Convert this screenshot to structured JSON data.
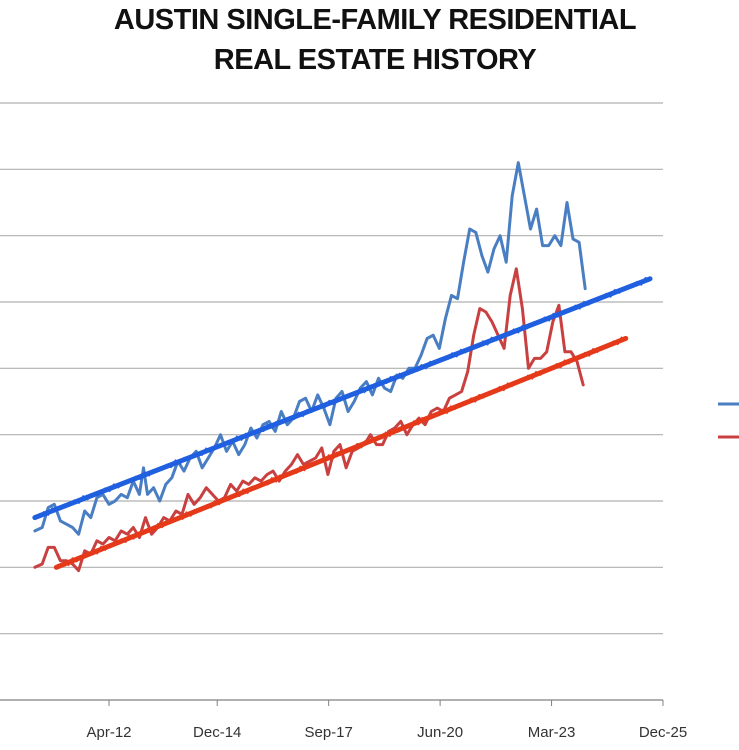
{
  "chart_data": {
    "type": "line",
    "title_line1": "AUSTIN SINGLE-FAMILY RESIDENTIAL",
    "title_line2": "REAL ESTATE HISTORY",
    "xlabel": "",
    "ylabel": "",
    "x_tick_labels": [
      "Apr-12",
      "Dec-14",
      "Sep-17",
      "Jun-20",
      "Mar-23",
      "Dec-25"
    ],
    "x_ticks": [
      2012.25,
      2014.92,
      2017.67,
      2020.42,
      2023.17,
      2025.92
    ],
    "xlim": [
      2010.3,
      2025.92
    ],
    "ylim": [
      0,
      9
    ],
    "grid": true,
    "colors": {
      "blue": "#4a7ec3",
      "blue_trend": "#1f5fe0",
      "red": "#c94040",
      "red_trend": "#e43a1a",
      "grid": "#b0b0b0",
      "axis": "#808080"
    },
    "series": [
      {
        "color": "blue",
        "x": [
          2010.42,
          2010.6,
          2010.75,
          2010.9,
          2011.05,
          2011.2,
          2011.35,
          2011.5,
          2011.65,
          2011.8,
          2011.95,
          2012.1,
          2012.25,
          2012.4,
          2012.55,
          2012.7,
          2012.85,
          2013.0,
          2013.1,
          2013.2,
          2013.35,
          2013.5,
          2013.65,
          2013.8,
          2013.95,
          2014.1,
          2014.25,
          2014.4,
          2014.55,
          2014.7,
          2014.85,
          2015.0,
          2015.15,
          2015.3,
          2015.45,
          2015.6,
          2015.75,
          2015.9,
          2016.05,
          2016.2,
          2016.35,
          2016.5,
          2016.65,
          2016.8,
          2016.95,
          2017.1,
          2017.25,
          2017.4,
          2017.55,
          2017.7,
          2017.85,
          2018.0,
          2018.15,
          2018.3,
          2018.45,
          2018.6,
          2018.75,
          2018.9,
          2019.05,
          2019.2,
          2019.35,
          2019.5,
          2019.65,
          2019.8,
          2019.95,
          2020.1,
          2020.25,
          2020.4,
          2020.55,
          2020.7,
          2020.85,
          2021.0,
          2021.15,
          2021.3,
          2021.45,
          2021.6,
          2021.75,
          2021.9,
          2022.05,
          2022.2,
          2022.35,
          2022.5,
          2022.65,
          2022.8,
          2022.95,
          2023.1,
          2023.25,
          2023.4,
          2023.55,
          2023.7,
          2023.85,
          2024.0
        ],
        "values": [
          2.55,
          2.6,
          2.9,
          2.95,
          2.7,
          2.65,
          2.6,
          2.5,
          2.85,
          2.75,
          3.05,
          3.1,
          2.95,
          3.0,
          3.1,
          3.05,
          3.3,
          3.1,
          3.5,
          3.1,
          3.2,
          3.0,
          3.25,
          3.35,
          3.6,
          3.45,
          3.65,
          3.75,
          3.5,
          3.65,
          3.8,
          4.0,
          3.75,
          3.9,
          3.7,
          3.85,
          4.1,
          3.95,
          4.15,
          4.2,
          4.05,
          4.35,
          4.15,
          4.25,
          4.5,
          4.55,
          4.35,
          4.6,
          4.4,
          4.15,
          4.55,
          4.65,
          4.35,
          4.5,
          4.7,
          4.8,
          4.6,
          4.85,
          4.7,
          4.65,
          4.9,
          4.85,
          5.0,
          5.0,
          5.2,
          5.45,
          5.5,
          5.3,
          5.75,
          6.1,
          6.05,
          6.6,
          7.1,
          7.05,
          6.7,
          6.45,
          6.8,
          7.0,
          6.6,
          7.6,
          8.1,
          7.6,
          7.1,
          7.4,
          6.85,
          6.85,
          7.0,
          6.85,
          7.5,
          6.95,
          6.9,
          6.2
        ]
      },
      {
        "color": "red",
        "x": [
          2010.42,
          2010.6,
          2010.75,
          2010.9,
          2011.05,
          2011.2,
          2011.35,
          2011.5,
          2011.65,
          2011.8,
          2011.95,
          2012.1,
          2012.25,
          2012.4,
          2012.55,
          2012.7,
          2012.85,
          2013.0,
          2013.15,
          2013.3,
          2013.45,
          2013.6,
          2013.75,
          2013.9,
          2014.05,
          2014.2,
          2014.35,
          2014.5,
          2014.65,
          2014.8,
          2014.95,
          2015.1,
          2015.25,
          2015.4,
          2015.55,
          2015.7,
          2015.85,
          2016.0,
          2016.15,
          2016.3,
          2016.45,
          2016.6,
          2016.75,
          2016.9,
          2017.05,
          2017.2,
          2017.35,
          2017.5,
          2017.65,
          2017.8,
          2017.95,
          2018.1,
          2018.25,
          2018.4,
          2018.55,
          2018.7,
          2018.85,
          2019.0,
          2019.15,
          2019.3,
          2019.45,
          2019.6,
          2019.75,
          2019.9,
          2020.05,
          2020.2,
          2020.35,
          2020.5,
          2020.65,
          2020.8,
          2020.95,
          2021.1,
          2021.25,
          2021.4,
          2021.55,
          2021.7,
          2021.85,
          2022.0,
          2022.15,
          2022.3,
          2022.45,
          2022.6,
          2022.75,
          2022.9,
          2023.05,
          2023.2,
          2023.35,
          2023.5,
          2023.65,
          2023.8,
          2023.95
        ],
        "values": [
          2.0,
          2.05,
          2.3,
          2.3,
          2.1,
          2.1,
          2.05,
          1.95,
          2.25,
          2.2,
          2.4,
          2.35,
          2.45,
          2.4,
          2.55,
          2.5,
          2.6,
          2.45,
          2.75,
          2.5,
          2.6,
          2.75,
          2.7,
          2.85,
          2.8,
          3.1,
          2.95,
          3.05,
          3.2,
          3.1,
          3.0,
          3.05,
          3.25,
          3.15,
          3.3,
          3.25,
          3.35,
          3.3,
          3.4,
          3.45,
          3.3,
          3.45,
          3.55,
          3.7,
          3.55,
          3.6,
          3.65,
          3.8,
          3.4,
          3.75,
          3.85,
          3.5,
          3.75,
          3.8,
          3.85,
          4.0,
          3.85,
          3.85,
          4.05,
          4.1,
          4.2,
          4.0,
          4.15,
          4.25,
          4.15,
          4.35,
          4.4,
          4.35,
          4.55,
          4.6,
          4.65,
          4.95,
          5.5,
          5.9,
          5.85,
          5.7,
          5.5,
          5.3,
          6.1,
          6.5,
          5.9,
          5.0,
          5.15,
          5.15,
          5.25,
          5.7,
          5.95,
          5.25,
          5.25,
          5.1,
          4.75
        ]
      },
      {
        "color": "blue_trend",
        "kind": "trend",
        "x": [
          2010.42,
          2025.6
        ],
        "values": [
          2.75,
          6.35
        ]
      },
      {
        "color": "red_trend",
        "kind": "trend",
        "x": [
          2010.95,
          2025.0
        ],
        "values": [
          2.0,
          5.45
        ]
      }
    ],
    "legend": {
      "position": "right",
      "entries": [
        "blue",
        "red"
      ]
    }
  }
}
